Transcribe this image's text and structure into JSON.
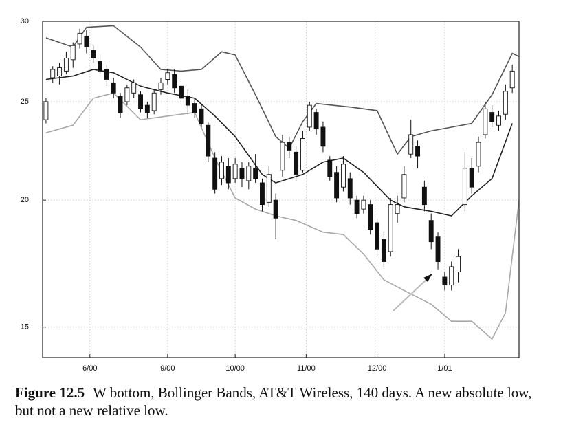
{
  "chart_data": {
    "type": "candlestick",
    "log_y": true,
    "grid": true,
    "xlim": [
      -1,
      140
    ],
    "ylim": [
      14,
      30
    ],
    "yticks": [
      15,
      20,
      25,
      30
    ],
    "xticks": [
      {
        "value": 13,
        "label": "6/00"
      },
      {
        "value": 36,
        "label": "9/00"
      },
      {
        "value": 56,
        "label": "10/00"
      },
      {
        "value": 77,
        "label": "11/00"
      },
      {
        "value": 98,
        "label": "12/00"
      },
      {
        "value": 118,
        "label": "1/01"
      }
    ],
    "candles": {
      "x": [
        0,
        2,
        4,
        6,
        8,
        10,
        12,
        14,
        16,
        18,
        20,
        22,
        24,
        26,
        28,
        30,
        32,
        34,
        36,
        38,
        40,
        42,
        44,
        46,
        48,
        50,
        52,
        54,
        56,
        58,
        60,
        62,
        64,
        66,
        68,
        70,
        72,
        74,
        76,
        78,
        80,
        82,
        84,
        86,
        88,
        90,
        92,
        94,
        96,
        98,
        100,
        102,
        104,
        106,
        108,
        110,
        112,
        114,
        116,
        118,
        120,
        122,
        124,
        126,
        128,
        130,
        132,
        134,
        136,
        138
      ],
      "open": [
        24.0,
        26.4,
        26.5,
        26.8,
        27.5,
        28.5,
        29.0,
        28.1,
        27.4,
        26.9,
        26.1,
        25.3,
        25.0,
        25.5,
        25.4,
        24.8,
        24.5,
        25.7,
        26.3,
        26.6,
        25.9,
        25.3,
        24.9,
        24.6,
        23.7,
        22.0,
        21.0,
        21.6,
        21.0,
        21.5,
        20.9,
        21.5,
        20.8,
        19.9,
        20.0,
        21.4,
        22.8,
        22.3,
        21.4,
        23.6,
        24.4,
        23.6,
        21.9,
        21.3,
        20.6,
        21.0,
        20.0,
        19.6,
        19.8,
        19.0,
        18.3,
        17.8,
        19.4,
        20.1,
        22.2,
        22.6,
        20.6,
        19.1,
        18.4,
        16.8,
        16.5,
        17.0,
        19.8,
        21.5,
        21.6,
        23.2,
        24.4,
        23.7,
        24.3,
        25.8
      ],
      "high": [
        25.2,
        27.1,
        27.3,
        28.0,
        28.6,
        29.5,
        29.4,
        28.4,
        27.8,
        27.2,
        26.4,
        25.5,
        26.0,
        26.3,
        25.6,
        25.0,
        25.7,
        26.4,
        26.9,
        26.9,
        26.2,
        25.7,
        25.2,
        24.9,
        23.9,
        22.3,
        22.1,
        22.0,
        22.0,
        21.8,
        21.8,
        22.2,
        21.0,
        21.6,
        20.3,
        23.2,
        23.1,
        22.6,
        23.4,
        25.0,
        24.6,
        23.9,
        22.1,
        21.6,
        22.1,
        21.3,
        20.2,
        20.2,
        20.0,
        19.2,
        18.6,
        20.1,
        20.2,
        21.6,
        24.0,
        22.9,
        20.9,
        19.4,
        18.6,
        17.0,
        17.4,
        17.9,
        22.3,
        22.0,
        23.1,
        25.0,
        24.8,
        24.5,
        26.0,
        27.2
      ],
      "low": [
        23.8,
        26.1,
        26.0,
        26.6,
        27.0,
        28.2,
        27.9,
        27.3,
        26.5,
        25.9,
        25.2,
        24.1,
        24.8,
        25.2,
        24.4,
        24.1,
        24.3,
        25.4,
        26.0,
        25.5,
        25.0,
        24.3,
        24.1,
        23.6,
        21.8,
        20.3,
        20.7,
        20.5,
        20.8,
        20.6,
        20.5,
        20.8,
        19.5,
        19.7,
        18.3,
        21.1,
        22.0,
        20.9,
        21.3,
        23.4,
        23.2,
        22.3,
        20.9,
        19.9,
        20.4,
        19.8,
        19.2,
        19.4,
        18.5,
        17.6,
        17.2,
        17.6,
        19.0,
        19.9,
        22.0,
        21.5,
        19.5,
        17.9,
        17.1,
        16.3,
        16.3,
        16.6,
        19.5,
        20.3,
        21.3,
        23.0,
        23.6,
        23.4,
        24.0,
        25.5
      ],
      "close": [
        25.0,
        26.9,
        27.0,
        27.6,
        28.4,
        29.2,
        28.3,
        27.6,
        26.8,
        26.3,
        25.5,
        24.4,
        25.8,
        26.1,
        24.6,
        24.4,
        25.5,
        26.1,
        26.7,
        25.8,
        25.2,
        24.8,
        24.4,
        23.8,
        22.1,
        20.5,
        21.8,
        20.8,
        21.7,
        21.0,
        21.6,
        21.0,
        19.8,
        21.2,
        19.2,
        22.8,
        22.4,
        21.2,
        23.0,
        24.8,
        23.5,
        22.6,
        21.1,
        20.1,
        21.7,
        20.1,
        19.4,
        20.0,
        18.7,
        17.9,
        17.4,
        19.8,
        19.8,
        21.2,
        23.2,
        22.1,
        19.8,
        18.2,
        17.4,
        16.5,
        17.2,
        17.6,
        21.5,
        20.6,
        22.8,
        24.6,
        23.9,
        24.2,
        25.6,
        26.8
      ]
    },
    "bands": [
      {
        "color": "#555555",
        "x": [
          0,
          8,
          12,
          20,
          28,
          34,
          40,
          46,
          52,
          56,
          62,
          68,
          72,
          76,
          80,
          90,
          98,
          104,
          108,
          114,
          120,
          126,
          132,
          138,
          140
        ],
        "values": [
          28.9,
          28.3,
          29.6,
          29.7,
          28.3,
          26.9,
          26.8,
          26.9,
          28.0,
          27.8,
          25.4,
          23.1,
          22.5,
          23.9,
          24.9,
          24.7,
          24.5,
          22.2,
          23.1,
          23.4,
          23.6,
          23.8,
          25.4,
          27.9,
          27.7
        ]
      },
      {
        "color": "#222222",
        "x": [
          0,
          8,
          14,
          20,
          28,
          36,
          44,
          50,
          56,
          64,
          68,
          76,
          82,
          88,
          94,
          102,
          106,
          114,
          120,
          126,
          132,
          138
        ],
        "values": [
          26.3,
          26.5,
          26.9,
          26.7,
          25.9,
          25.5,
          25.2,
          24.2,
          23.1,
          21.2,
          20.8,
          21.2,
          21.8,
          22.0,
          21.3,
          20.0,
          19.7,
          19.5,
          19.3,
          20.2,
          21.0,
          23.8
        ]
      },
      {
        "color": "#a8a8a8",
        "x": [
          0,
          8,
          14,
          20,
          28,
          36,
          44,
          50,
          56,
          62,
          68,
          74,
          82,
          88,
          94,
          100,
          106,
          114,
          120,
          126,
          132,
          136,
          140
        ],
        "values": [
          23.3,
          23.7,
          25.2,
          25.5,
          24.0,
          24.2,
          24.4,
          22.0,
          20.1,
          19.6,
          19.3,
          19.1,
          18.6,
          18.5,
          17.7,
          16.7,
          16.3,
          15.8,
          15.2,
          15.2,
          14.6,
          15.5,
          20.0
        ]
      }
    ]
  },
  "caption": {
    "label": "Figure 12.5",
    "text": "W bottom, Bollinger Bands, AT&T Wireless, 140 days. A new absolute low, but not a new relative low."
  }
}
